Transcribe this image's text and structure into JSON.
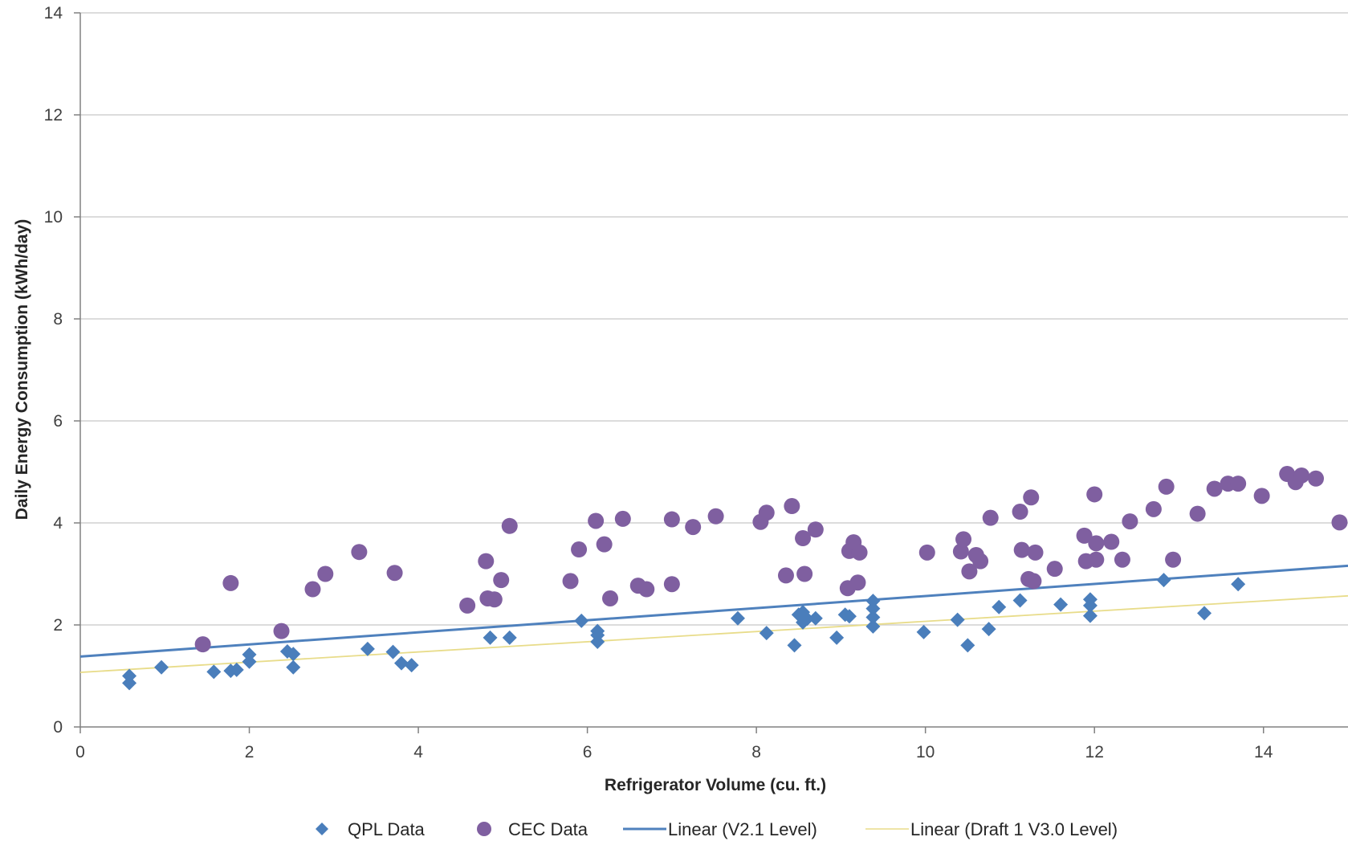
{
  "chart_data": {
    "type": "scatter",
    "xlabel": "Refrigerator Volume (cu. ft.)",
    "ylabel": "Daily Energy Consumption (kWh/day)",
    "xlim": [
      0,
      15
    ],
    "ylim": [
      0,
      14
    ],
    "x_ticks": [
      0,
      2,
      4,
      6,
      8,
      10,
      12,
      14
    ],
    "y_ticks": [
      0,
      2,
      4,
      6,
      8,
      10,
      12,
      14
    ],
    "grid": "horizontal",
    "legend_position": "bottom",
    "colors": {
      "qpl": "#4a7ebb",
      "cec": "#7f5fa0",
      "v21": "#4f81bd",
      "draft": "#e8dc8a",
      "grid": "#d0d0d0",
      "axis": "#808080"
    },
    "series": [
      {
        "name": "QPL Data",
        "marker": "diamond",
        "points": [
          [
            0.58,
            1.0
          ],
          [
            0.58,
            0.86
          ],
          [
            0.96,
            1.17
          ],
          [
            1.58,
            1.08
          ],
          [
            1.78,
            1.1
          ],
          [
            1.85,
            1.12
          ],
          [
            2.0,
            1.28
          ],
          [
            2.0,
            1.42
          ],
          [
            2.45,
            1.48
          ],
          [
            2.52,
            1.43
          ],
          [
            2.52,
            1.17
          ],
          [
            3.4,
            1.53
          ],
          [
            3.7,
            1.47
          ],
          [
            3.8,
            1.25
          ],
          [
            3.92,
            1.21
          ],
          [
            4.85,
            1.75
          ],
          [
            5.08,
            1.75
          ],
          [
            5.93,
            2.08
          ],
          [
            6.12,
            1.88
          ],
          [
            6.12,
            1.8
          ],
          [
            6.12,
            1.67
          ],
          [
            7.78,
            2.13
          ],
          [
            8.12,
            1.84
          ],
          [
            8.45,
            1.6
          ],
          [
            8.5,
            2.2
          ],
          [
            8.55,
            2.25
          ],
          [
            8.55,
            2.05
          ],
          [
            8.6,
            2.12
          ],
          [
            8.7,
            2.13
          ],
          [
            8.95,
            1.75
          ],
          [
            9.05,
            2.2
          ],
          [
            9.1,
            2.17
          ],
          [
            9.38,
            2.47
          ],
          [
            9.38,
            2.32
          ],
          [
            9.38,
            2.15
          ],
          [
            9.38,
            1.97
          ],
          [
            9.98,
            1.86
          ],
          [
            10.38,
            2.1
          ],
          [
            10.5,
            1.6
          ],
          [
            10.75,
            1.92
          ],
          [
            10.87,
            2.35
          ],
          [
            11.12,
            2.48
          ],
          [
            11.6,
            2.4
          ],
          [
            11.95,
            2.5
          ],
          [
            11.95,
            2.38
          ],
          [
            11.95,
            2.18
          ],
          [
            12.82,
            2.88
          ],
          [
            13.3,
            2.23
          ],
          [
            13.7,
            2.8
          ]
        ]
      },
      {
        "name": "CEC Data",
        "marker": "circle",
        "points": [
          [
            1.45,
            1.62
          ],
          [
            1.78,
            2.82
          ],
          [
            2.38,
            1.88
          ],
          [
            2.75,
            2.7
          ],
          [
            2.9,
            3.0
          ],
          [
            3.3,
            3.43
          ],
          [
            3.72,
            3.02
          ],
          [
            4.58,
            2.38
          ],
          [
            4.8,
            3.25
          ],
          [
            4.82,
            2.52
          ],
          [
            4.9,
            2.5
          ],
          [
            4.98,
            2.88
          ],
          [
            5.08,
            3.94
          ],
          [
            5.8,
            2.86
          ],
          [
            5.9,
            3.48
          ],
          [
            6.1,
            4.04
          ],
          [
            6.2,
            3.58
          ],
          [
            6.27,
            2.52
          ],
          [
            6.42,
            4.08
          ],
          [
            6.6,
            2.77
          ],
          [
            6.7,
            2.7
          ],
          [
            7.0,
            4.07
          ],
          [
            7.0,
            2.8
          ],
          [
            7.25,
            3.92
          ],
          [
            7.52,
            4.13
          ],
          [
            8.05,
            4.02
          ],
          [
            8.12,
            4.2
          ],
          [
            8.35,
            2.97
          ],
          [
            8.42,
            4.33
          ],
          [
            8.55,
            3.7
          ],
          [
            8.57,
            3.0
          ],
          [
            8.7,
            3.87
          ],
          [
            9.1,
            3.45
          ],
          [
            9.15,
            3.62
          ],
          [
            9.22,
            3.42
          ],
          [
            9.08,
            2.72
          ],
          [
            9.2,
            2.83
          ],
          [
            10.02,
            3.42
          ],
          [
            10.42,
            3.44
          ],
          [
            10.45,
            3.68
          ],
          [
            10.52,
            3.05
          ],
          [
            10.6,
            3.37
          ],
          [
            10.65,
            3.25
          ],
          [
            10.77,
            4.1
          ],
          [
            11.12,
            4.22
          ],
          [
            11.14,
            3.47
          ],
          [
            11.25,
            4.5
          ],
          [
            11.22,
            2.9
          ],
          [
            11.28,
            2.86
          ],
          [
            11.3,
            3.42
          ],
          [
            11.53,
            3.1
          ],
          [
            11.88,
            3.75
          ],
          [
            11.9,
            3.25
          ],
          [
            12.0,
            4.56
          ],
          [
            12.02,
            3.6
          ],
          [
            12.02,
            3.28
          ],
          [
            12.2,
            3.63
          ],
          [
            12.33,
            3.28
          ],
          [
            12.42,
            4.03
          ],
          [
            12.7,
            4.27
          ],
          [
            12.85,
            4.71
          ],
          [
            12.93,
            3.28
          ],
          [
            13.22,
            4.18
          ],
          [
            13.42,
            4.67
          ],
          [
            13.58,
            4.77
          ],
          [
            13.7,
            4.77
          ],
          [
            13.98,
            4.53
          ],
          [
            14.28,
            4.96
          ],
          [
            14.38,
            4.8
          ],
          [
            14.45,
            4.93
          ],
          [
            14.62,
            4.87
          ],
          [
            14.9,
            4.01
          ]
        ]
      },
      {
        "name": "Linear (V2.1 Level)",
        "type": "line",
        "x": [
          0,
          15
        ],
        "y": [
          1.38,
          3.16
        ]
      },
      {
        "name": "Linear (Draft 1 V3.0 Level)",
        "type": "line",
        "x": [
          0,
          15
        ],
        "y": [
          1.07,
          2.57
        ]
      }
    ]
  }
}
